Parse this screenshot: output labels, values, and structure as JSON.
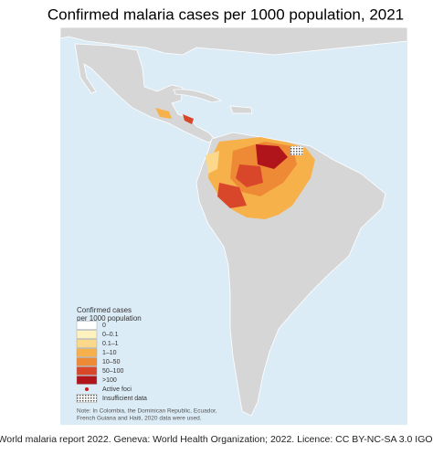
{
  "title": "Confirmed malaria cases per 1000 population, 2021",
  "legend": {
    "title_lines": [
      "Confirmed cases",
      "per 1000 population"
    ],
    "items": [
      {
        "label": "0",
        "color": "#ffffff",
        "kind": "swatch"
      },
      {
        "label": "0–0.1",
        "color": "#fdf1bd",
        "kind": "swatch"
      },
      {
        "label": "0.1–1",
        "color": "#fbd88a",
        "kind": "swatch"
      },
      {
        "label": "1–10",
        "color": "#f6b14b",
        "kind": "swatch"
      },
      {
        "label": "10–50",
        "color": "#ee8a35",
        "kind": "swatch"
      },
      {
        "label": "50–100",
        "color": "#d8472a",
        "kind": "swatch"
      },
      {
        "label": ">100",
        "color": "#b0151c",
        "kind": "swatch"
      },
      {
        "label": "Active foci",
        "color": "#d7191c",
        "kind": "dot"
      },
      {
        "label": "Insufficient data",
        "color": "#888888",
        "kind": "hatch"
      }
    ],
    "note_lines": [
      "Note: In Colombia, the Dominican Republic, Ecuador,",
      "French Guiana and Haiti, 2020 data were used."
    ]
  },
  "source": "World malaria report 2022. Geneva: World Health Organization; 2022. Licence: CC BY-NC-SA 3.0  IGO."
}
